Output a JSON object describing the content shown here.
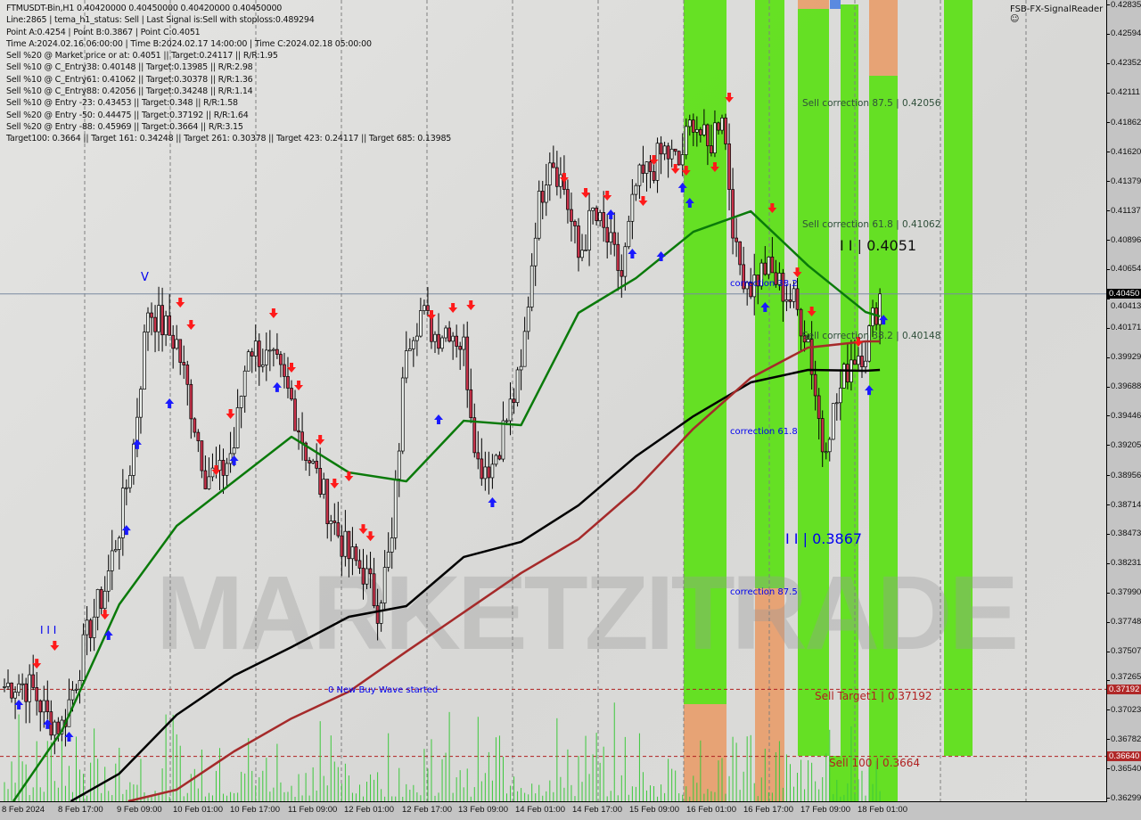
{
  "header": {
    "symbol_line": "FTMUSDT-Bin,H1  0.40420000 0.40450000 0.40420000 0.40450000",
    "info_lines": [
      "Line:2865 | tema_h1_status: Sell | Last Signal is:Sell with stoploss:0.489294",
      "Point A:0.4254 | Point B:0.3867 | Point C:0.4051",
      "Time A:2024.02.16 06:00:00 | Time B:2024.02.17 14:00:00 | Time C:2024.02.18 05:00:00",
      "Sell %20 @ Market price or at: 0.4051 || Target:0.24117 || R/R:1.95",
      "Sell %10 @ C_Entry38: 0.40148 || Target:0.13985 || R/R:2.98",
      "Sell %10 @ C_Entry61: 0.41062 || Target:0.30378 || R/R:1.36",
      "Sell %10 @ C_Entry88: 0.42056 || Target:0.34248 || R/R:1.14",
      "Sell %10 @ Entry -23: 0.43453 || Target:0.348 || R/R:1.58",
      "Sell %20 @ Entry -50: 0.44475 || Target:0.37192 || R/R:1.64",
      "Sell %20 @ Entry -88: 0.45969 || Target:0.3664 || R/R:3.15",
      "Target100: 0.3664 || Target 161: 0.34248 || Target 261: 0.30378 || Target 423: 0.24117 || Target 685: 0.13985"
    ],
    "indicator_name": "FSB-FX-SignalReader",
    "indicator_icon": "smiley-icon"
  },
  "watermark": "MARKETZITRADE",
  "labels": {
    "sell_corr_875": "Sell correction 87.5 | 0.42056",
    "sell_corr_618": "Sell correction 61.8 | 0.41062",
    "sell_corr_382": "Sell correction 38.2 | 0.40148",
    "point_c": "I I | 0.4051",
    "point_b": "I I | 0.3867",
    "corr_382": "correction 38.2",
    "corr_618": "correction 61.8",
    "corr_875": "correction 87.5",
    "sell_target1": "Sell Target1 | 0.37192",
    "sell_100": "Sell 100 | 0.3664",
    "new_wave": "0 New Buy Wave started",
    "wave_iii": "I I I",
    "wave_v": "V"
  },
  "colors": {
    "zone_green": "#5fe01a",
    "zone_green_dark": "#44c92c",
    "zone_orange": "#e8a070",
    "ma_fast": "#0a7a0a",
    "ma_slow": "#000000",
    "ma_long": "#a52a2a",
    "sell_arrow": "#ff1a1a",
    "buy_arrow": "#1a1aff",
    "current_price_line": "#7a8aa0",
    "target_line": "#b02020",
    "volume": "#3cc83c"
  },
  "chart_data": {
    "type": "candlestick",
    "timeframe": "H1",
    "ylim": [
      0.36299,
      0.42835
    ],
    "y_ticks": [
      "0.42835",
      "0.42594",
      "0.42352",
      "0.42111",
      "0.41862",
      "0.41620",
      "0.41379",
      "0.41137",
      "0.40896",
      "0.40654",
      "0.40413",
      "0.40171",
      "0.39929",
      "0.39688",
      "0.39446",
      "0.39205",
      "0.38956",
      "0.38714",
      "0.38473",
      "0.38231",
      "0.37990",
      "0.37748",
      "0.37507",
      "0.37265",
      "0.37023",
      "0.36782",
      "0.36540",
      "0.36299"
    ],
    "x_ticks": [
      "8 Feb 2024",
      "8 Feb 17:00",
      "9 Feb 09:00",
      "10 Feb 01:00",
      "10 Feb 17:00",
      "11 Feb 09:00",
      "12 Feb 01:00",
      "12 Feb 17:00",
      "13 Feb 09:00",
      "14 Feb 01:00",
      "14 Feb 17:00",
      "15 Feb 09:00",
      "16 Feb 01:00",
      "16 Feb 17:00",
      "17 Feb 09:00",
      "18 Feb 01:00"
    ],
    "close_every_4h": [
      0.37217,
      0.37254,
      0.3718,
      0.3696,
      0.36886,
      0.3729,
      0.37731,
      0.38025,
      0.38539,
      0.392,
      0.40338,
      0.40191,
      0.40044,
      0.3953,
      0.38979,
      0.38943,
      0.392,
      0.40044,
      0.39934,
      0.39824,
      0.39567,
      0.39163,
      0.38869,
      0.38539,
      0.38282,
      0.38172,
      0.37878,
      0.38392,
      0.40081,
      0.40301,
      0.40118,
      0.40191,
      0.40008,
      0.39053,
      0.39053,
      0.3942,
      0.39787,
      0.41036,
      0.41623,
      0.41329,
      0.40742,
      0.41109,
      0.40889,
      0.40595,
      0.41329,
      0.41476,
      0.41623,
      0.41513,
      0.41917,
      0.41623,
      0.4199,
      0.40742,
      0.40522,
      0.40669,
      0.40522,
      0.40375,
      0.40081,
      0.392,
      0.39567,
      0.39934,
      0.40008,
      0.4045
    ],
    "moving_averages_every_16h": {
      "fast": [
        null,
        0.3685,
        0.37892,
        0.38539,
        0.38906,
        0.39273,
        0.38979,
        0.38906,
        0.39405,
        0.39369,
        0.40294,
        0.4058,
        0.40962,
        0.41131,
        0.40683,
        0.40301,
        0.40265
      ],
      "slow": [
        null,
        null,
        0.36497,
        0.36982,
        0.37305,
        0.3754,
        0.3779,
        0.37878,
        0.38282,
        0.38407,
        0.38708,
        0.39112,
        0.39442,
        0.39721,
        0.39824,
        0.39817,
        0.39824
      ],
      "long": [
        null,
        null,
        null,
        0.36365,
        0.36681,
        0.36952,
        0.37173,
        0.37503,
        0.37826,
        0.3815,
        0.38429,
        0.3884,
        0.39339,
        0.39758,
        0.40008,
        0.40059,
        0.40059
      ]
    },
    "sell_signals": [
      [
        9,
        0.374
      ],
      [
        14,
        0.37547
      ],
      [
        28,
        0.37804
      ],
      [
        49,
        0.40375
      ],
      [
        52,
        0.40191
      ],
      [
        59,
        0.38994
      ],
      [
        63,
        0.39457
      ],
      [
        75,
        0.40287
      ],
      [
        80,
        0.39839
      ],
      [
        82,
        0.39692
      ],
      [
        88,
        0.39244
      ],
      [
        92,
        0.38884
      ],
      [
        96,
        0.38943
      ],
      [
        100,
        0.38509
      ],
      [
        102,
        0.3845
      ],
      [
        119,
        0.40272
      ],
      [
        125,
        0.40331
      ],
      [
        130,
        0.40353
      ],
      [
        156,
        0.41403
      ],
      [
        162,
        0.41278
      ],
      [
        168,
        0.41256
      ],
      [
        178,
        0.41212
      ],
      [
        181,
        0.4155
      ],
      [
        187,
        0.41476
      ],
      [
        190,
        0.41462
      ],
      [
        198,
        0.41491
      ],
      [
        202,
        0.42064
      ],
      [
        214,
        0.41153
      ],
      [
        221,
        0.40624
      ],
      [
        225,
        0.40301
      ],
      [
        238,
        0.40052
      ]
    ],
    "buy_signals": [
      [
        4,
        0.3707
      ],
      [
        12,
        0.36909
      ],
      [
        18,
        0.36806
      ],
      [
        29,
        0.37643
      ],
      [
        34,
        0.38509
      ],
      [
        37,
        0.39215
      ],
      [
        46,
        0.39552
      ],
      [
        64,
        0.39082
      ],
      [
        76,
        0.39685
      ],
      [
        121,
        0.3942
      ],
      [
        136,
        0.38737
      ],
      [
        169,
        0.41109
      ],
      [
        175,
        0.40786
      ],
      [
        183,
        0.40764
      ],
      [
        189,
        0.4133
      ],
      [
        191,
        0.41205
      ],
      [
        212,
        0.40345
      ],
      [
        241,
        0.39662
      ],
      [
        245,
        0.40242
      ]
    ],
    "horizontal_lines": {
      "current_price": "0.40450",
      "sell_target1": "0.37192",
      "sell_100": "0.36640"
    }
  }
}
